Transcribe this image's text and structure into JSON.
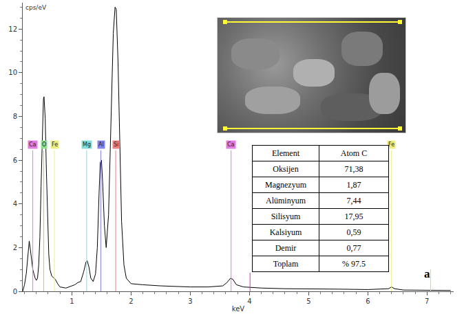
{
  "chart_data": {
    "type": "line",
    "y_label": "cps/eV",
    "x_label": "keV",
    "color": "#000000",
    "grid": false,
    "xlim": [
      0.17,
      7.45
    ],
    "xticks": [
      1,
      2,
      3,
      4,
      5,
      6,
      7
    ],
    "ylim": [
      0,
      13.2
    ],
    "yticks": [
      0,
      2,
      4,
      6,
      8,
      10,
      12
    ],
    "x": [
      0.17,
      0.2,
      0.23,
      0.26,
      0.28,
      0.3,
      0.32,
      0.34,
      0.36,
      0.38,
      0.4,
      0.42,
      0.44,
      0.46,
      0.48,
      0.5,
      0.52,
      0.53,
      0.55,
      0.57,
      0.59,
      0.61,
      0.63,
      0.66,
      0.7,
      0.72,
      0.76,
      0.8,
      0.9,
      1.0,
      1.05,
      1.1,
      1.15,
      1.2,
      1.24,
      1.26,
      1.29,
      1.32,
      1.36,
      1.4,
      1.43,
      1.46,
      1.48,
      1.5,
      1.52,
      1.55,
      1.58,
      1.62,
      1.66,
      1.7,
      1.73,
      1.75,
      1.78,
      1.81,
      1.84,
      1.88,
      1.92,
      2.0,
      2.2,
      2.5,
      2.8,
      3.0,
      3.3,
      3.55,
      3.62,
      3.68,
      3.72,
      3.78,
      3.9,
      4.0,
      4.2,
      4.6,
      5.0,
      5.5,
      6.0,
      6.35,
      6.4,
      6.45,
      6.6,
      7.0,
      7.4
    ],
    "values": [
      0.0,
      0.3,
      0.8,
      1.8,
      2.3,
      1.9,
      1.4,
      1.0,
      0.8,
      0.6,
      0.5,
      0.6,
      1.2,
      2.5,
      4.8,
      7.2,
      8.8,
      8.9,
      7.9,
      5.5,
      3.2,
      1.7,
      1.0,
      0.7,
      0.6,
      0.55,
      0.35,
      0.2,
      0.15,
      0.25,
      0.3,
      0.4,
      0.45,
      0.9,
      1.35,
      1.4,
      1.1,
      0.6,
      0.45,
      0.8,
      2.0,
      4.5,
      5.9,
      6.0,
      5.0,
      3.0,
      2.0,
      3.5,
      7.5,
      11.8,
      13.0,
      12.9,
      10.5,
      6.5,
      3.2,
      1.2,
      0.6,
      0.35,
      0.3,
      0.25,
      0.22,
      0.2,
      0.2,
      0.25,
      0.4,
      0.6,
      0.55,
      0.3,
      0.2,
      0.18,
      0.15,
      0.12,
      0.12,
      0.1,
      0.08,
      0.12,
      0.2,
      0.12,
      0.06,
      0.05,
      0.04
    ],
    "element_markers": [
      {
        "name": "Ca",
        "x": 0.34,
        "color": "#e27ae2"
      },
      {
        "name": "O",
        "x": 0.525,
        "color": "#8fe08f"
      },
      {
        "name": "Fe",
        "x": 0.705,
        "color": "#eeee80"
      },
      {
        "name": "Mg",
        "x": 1.25,
        "color": "#7fdede"
      },
      {
        "name": "Al",
        "x": 1.49,
        "color": "#8585f0"
      },
      {
        "name": "Si",
        "x": 1.74,
        "color": "#ee8080"
      },
      {
        "name": "Ca",
        "x": 3.69,
        "color": "#e27ae2"
      },
      {
        "name": "Fe",
        "x": 6.4,
        "color": "#eeee80"
      }
    ],
    "secondary_lines": [
      {
        "x": 4.01,
        "height": 0.85,
        "color": "#cc33cc"
      },
      {
        "x": 7.06,
        "height": 1.0,
        "color": "#e0e040"
      }
    ]
  },
  "table": {
    "header": [
      "Element",
      "Atom C"
    ],
    "rows": [
      [
        "Oksijen",
        "71,38"
      ],
      [
        "Magnezyum",
        "1,87"
      ],
      [
        "Alüminyum",
        "7,44"
      ],
      [
        "Silisyum",
        "17,95"
      ],
      [
        "Kalsiyum",
        "0,59"
      ],
      [
        "Demir",
        "0,77"
      ],
      [
        "Toplam",
        "% 97.5"
      ]
    ]
  },
  "panel_label": "a"
}
